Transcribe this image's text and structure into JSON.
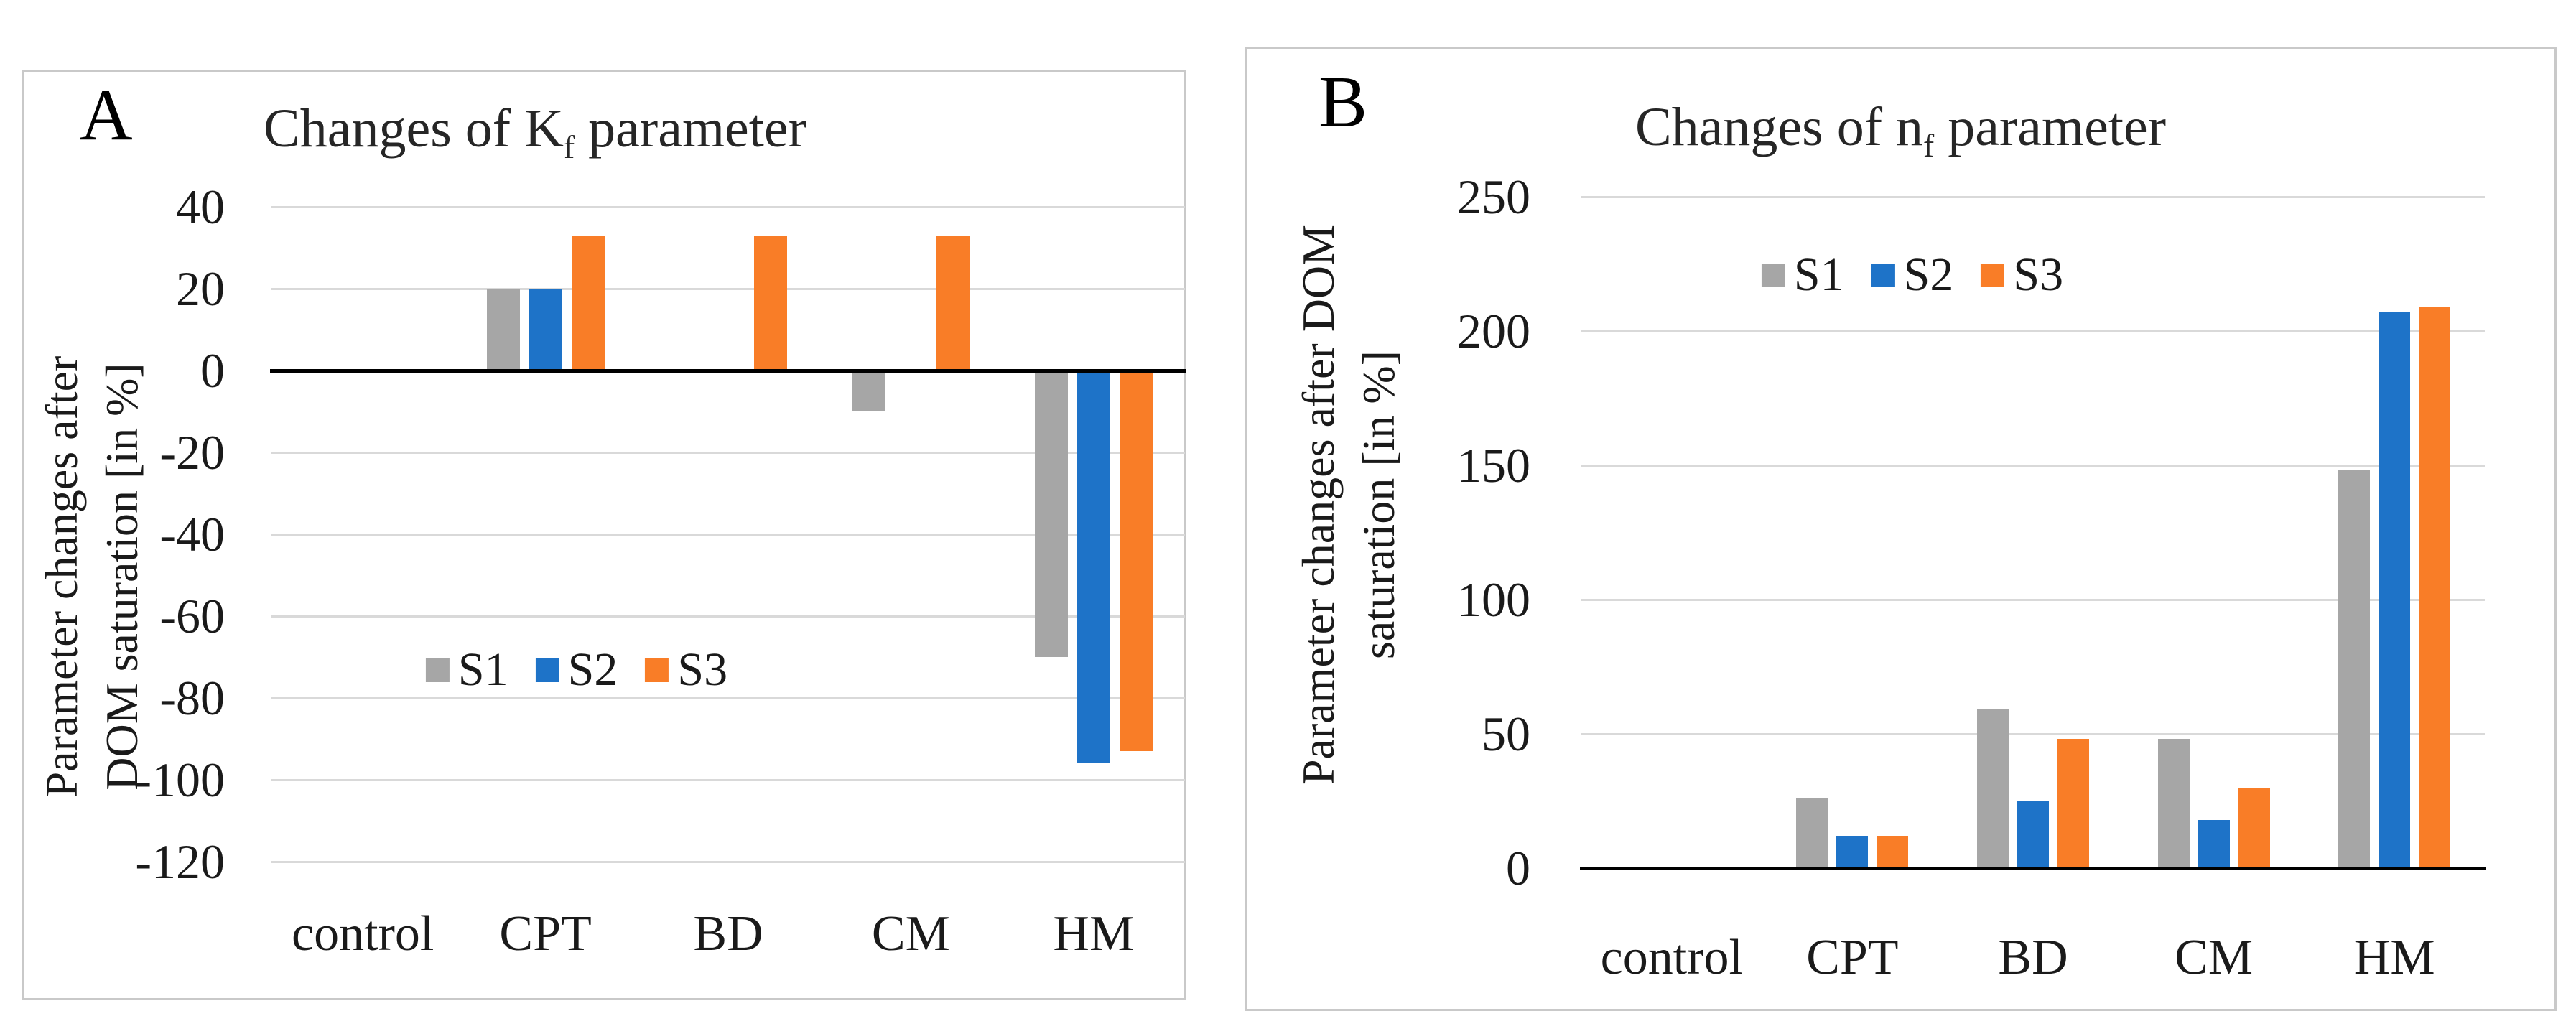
{
  "panels": [
    {
      "letter": "A",
      "title_pre": "Changes of K",
      "title_sub": "f",
      "title_post": " parameter",
      "ylabel_line1": "Parameter changes after",
      "ylabel_line2": "DOM saturation [in %]"
    },
    {
      "letter": "B",
      "title_pre": "Changes of n",
      "title_sub": "f",
      "title_post": " parameter",
      "ylabel_line1": "Parameter changes after DOM",
      "ylabel_line2": "saturation [in %]"
    }
  ],
  "colors": {
    "s1_gray": "#A6A6A6",
    "s2_blue": "#1E73C8",
    "s3_orange": "#F97D27",
    "gridline": "#D9D9D9",
    "zero_axis": "#000000",
    "panel_border": "#C9C9C9"
  },
  "chart_data": [
    {
      "type": "bar",
      "panel": "A",
      "title": "Changes of Kf parameter",
      "xlabel": "",
      "ylabel": "Parameter changes after DOM saturation [in %]",
      "categories": [
        "control",
        "CPT",
        "BD",
        "CM",
        "HM"
      ],
      "series": [
        {
          "name": "S1",
          "color": "#A6A6A6",
          "values": [
            0,
            20,
            0,
            -10,
            -70
          ]
        },
        {
          "name": "S2",
          "color": "#1E73C8",
          "values": [
            0,
            20,
            0,
            0,
            -96
          ]
        },
        {
          "name": "S3",
          "color": "#F97D27",
          "values": [
            0,
            33,
            33,
            33,
            -93
          ]
        }
      ],
      "yticks": [
        40,
        20,
        0,
        -20,
        -40,
        -60,
        -80,
        -100,
        -120
      ],
      "ylim": [
        -130,
        45
      ],
      "grid": true,
      "legend_position": "inside center-left"
    },
    {
      "type": "bar",
      "panel": "B",
      "title": "Changes of nf parameter",
      "xlabel": "",
      "ylabel": "Parameter changes after DOM saturation [in %]",
      "categories": [
        "control",
        "CPT",
        "BD",
        "CM",
        "HM"
      ],
      "series": [
        {
          "name": "S1",
          "color": "#A6A6A6",
          "values": [
            0,
            26,
            59,
            48,
            148
          ]
        },
        {
          "name": "S2",
          "color": "#1E73C8",
          "values": [
            0,
            12,
            25,
            18,
            207
          ]
        },
        {
          "name": "S3",
          "color": "#F97D27",
          "values": [
            0,
            12,
            48,
            30,
            209
          ]
        }
      ],
      "yticks": [
        250,
        200,
        150,
        100,
        50,
        0
      ],
      "ylim": [
        0,
        260
      ],
      "grid": true,
      "legend_position": "inside upper-left"
    }
  ]
}
